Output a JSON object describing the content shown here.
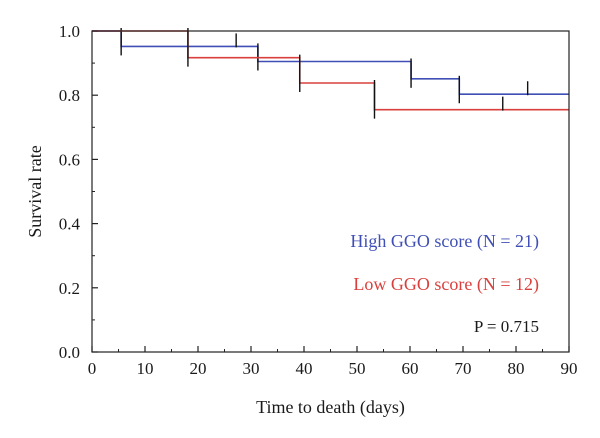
{
  "chart_data": {
    "type": "line",
    "subtype": "kaplan-meier",
    "xlabel": "Time to death (days)",
    "ylabel": "Survival rate",
    "xlim": [
      0,
      90
    ],
    "ylim": [
      0,
      1.0
    ],
    "xticks": [
      "0",
      "10",
      "20",
      "30",
      "40",
      "50",
      "60",
      "70",
      "80",
      "90"
    ],
    "yticks": [
      "0.0",
      "0.2",
      "0.4",
      "0.6",
      "0.8",
      "1.0"
    ],
    "grid": false,
    "series": [
      {
        "name": "High GGO score (N = 21)",
        "color": "#3f4fb5",
        "steps": [
          [
            0,
            1.0
          ],
          [
            5.5,
            0.952
          ],
          [
            31.3,
            0.905
          ],
          [
            60.2,
            0.851
          ],
          [
            69.3,
            0.803
          ]
        ],
        "end_x": 90,
        "censor_times": [
          5.5,
          27.2,
          31.3,
          60.2,
          69.3,
          82.2
        ]
      },
      {
        "name": "Low GGO score (N = 12)",
        "color": "#d9403d",
        "steps": [
          [
            0,
            1.0
          ],
          [
            18.1,
            0.917
          ],
          [
            39.2,
            0.838
          ],
          [
            53.3,
            0.755
          ]
        ],
        "end_x": 90,
        "censor_times": [
          18.1,
          39.2,
          53.3,
          77.5
        ]
      }
    ],
    "annotations": [
      {
        "text": "P = 0.715"
      }
    ]
  }
}
